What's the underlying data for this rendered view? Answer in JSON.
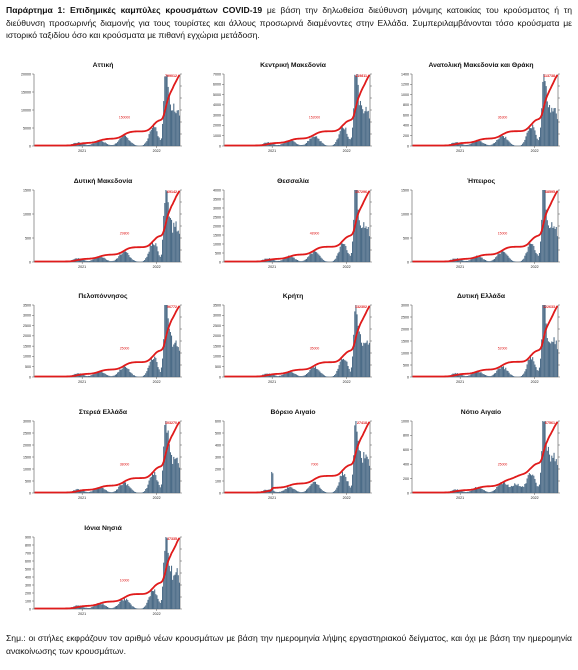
{
  "caption": {
    "label": "Παράρτημα 1:",
    "title": "Επιδημικές καμπύλες κρουσμάτων COVID-19",
    "text": " με βάση την δηλωθείσα διεύθυνση μόνιμης κατοικίας του κρούσματος ή τη διεύθυνση προσωρινής διαμονής για τους τουρίστες και άλλους προσωρινά διαμένοντες στην Ελλάδα. Συμπεριλαμβάνονται τόσο κρούσματα με ιστορικό ταξιδίου όσο και κρούσματα με πιθανή εγχώρια μετάδοση."
  },
  "note": "Σημ.: οι στήλες εκφράζουν τον αριθμό νέων κρουσμάτων με βάση την ημερομηνία λήψης εργαστηριακού δείγματος, και όχι με βάση την ημερομηνία ανακοίνωσης των κρουσμάτων.",
  "colors": {
    "bars": "#4a6a86",
    "line": "#e01b1b",
    "axis": "#333333"
  },
  "chart_data": [
    {
      "type": "bar",
      "title": "Αττική",
      "ylim": [
        0,
        20000
      ],
      "left_ticks": [
        "0",
        "5000",
        "10000",
        "15000",
        "20000"
      ],
      "x_ticks": [
        "2021",
        "2022"
      ],
      "bar_profile": "attiki",
      "cumulative_label": "799012",
      "mid_label": "150000"
    },
    {
      "type": "bar",
      "title": "Κεντρική Μακεδονία",
      "ylim": [
        0,
        7000
      ],
      "left_ticks": [
        "0",
        "1000",
        "2000",
        "3000",
        "4000",
        "5000",
        "6000",
        "7000"
      ],
      "x_ticks": [
        "2021",
        "2022"
      ],
      "bar_profile": "kmak",
      "cumulative_label": "419811",
      "mid_label": "152000"
    },
    {
      "type": "bar",
      "title": "Ανατολική Μακεδονία και Θράκη",
      "ylim": [
        0,
        1400
      ],
      "left_ticks": [
        "0",
        "200",
        "400",
        "600",
        "800",
        "1000",
        "1200",
        "1400"
      ],
      "x_ticks": [
        "2021",
        "2022"
      ],
      "bar_profile": "amth",
      "cumulative_label": "113738",
      "mid_label": "36300"
    },
    {
      "type": "bar",
      "title": "Δυτική Μακεδονία",
      "ylim": [
        0,
        1600
      ],
      "left_ticks": [
        "0",
        "500",
        "1000",
        "1500"
      ],
      "x_ticks": [
        "2021",
        "2022"
      ],
      "bar_profile": "dmak",
      "cumulative_label": "69142",
      "mid_label": "29800"
    },
    {
      "type": "bar",
      "title": "Θεσσαλία",
      "ylim": [
        0,
        4000
      ],
      "left_ticks": [
        "0",
        "500",
        "1000",
        "1500",
        "2000",
        "2500",
        "3000",
        "3500",
        "4000"
      ],
      "x_ticks": [
        "2021",
        "2022"
      ],
      "bar_profile": "thes",
      "cumulative_label": "157296",
      "mid_label": "48900"
    },
    {
      "type": "bar",
      "title": "Ήπειρος",
      "ylim": [
        0,
        1600
      ],
      "left_ticks": [
        "0",
        "500",
        "1000",
        "1500"
      ],
      "x_ticks": [
        "2021",
        "2022"
      ],
      "bar_profile": "ipir",
      "cumulative_label": "68595",
      "mid_label": "15000"
    },
    {
      "type": "bar",
      "title": "Πελοπόννησος",
      "ylim": [
        0,
        3500
      ],
      "left_ticks": [
        "0",
        "500",
        "1000",
        "1500",
        "2000",
        "2500",
        "3000",
        "3500"
      ],
      "x_ticks": [
        "2021",
        "2022"
      ],
      "bar_profile": "pelo",
      "cumulative_label": "96772",
      "mid_label": "25000"
    },
    {
      "type": "bar",
      "title": "Κρήτη",
      "ylim": [
        0,
        3500
      ],
      "left_ticks": [
        "0",
        "500",
        "1000",
        "1500",
        "2000",
        "2500",
        "3000",
        "3500"
      ],
      "x_ticks": [
        "2021",
        "2022"
      ],
      "bar_profile": "krit",
      "cumulative_label": "132302",
      "mid_label": "35000"
    },
    {
      "type": "bar",
      "title": "Δυτική Ελλάδα",
      "ylim": [
        0,
        3000
      ],
      "left_ticks": [
        "0",
        "500",
        "1000",
        "1500",
        "2000",
        "2500",
        "3000"
      ],
      "x_ticks": [
        "2021",
        "2022"
      ],
      "bar_profile": "dell",
      "cumulative_label": "122633",
      "mid_label": "52000"
    },
    {
      "type": "bar",
      "title": "Στερεά Ελλάδα",
      "ylim": [
        0,
        3000
      ],
      "left_ticks": [
        "0",
        "500",
        "1000",
        "1500",
        "2000",
        "2500",
        "3000"
      ],
      "x_ticks": [
        "2021",
        "2022"
      ],
      "bar_profile": "stel",
      "cumulative_label": "103270",
      "mid_label": "38000"
    },
    {
      "type": "bar",
      "title": "Βόρειο Αιγαίο",
      "ylim": [
        0,
        600
      ],
      "left_ticks": [
        "0",
        "100",
        "200",
        "300",
        "400",
        "500",
        "600"
      ],
      "x_ticks": [
        "2021",
        "2022"
      ],
      "bar_profile": "vaig",
      "cumulative_label": "27418",
      "mid_label": "7000"
    },
    {
      "type": "bar",
      "title": "Νότιο Αιγαίο",
      "ylim": [
        0,
        1000
      ],
      "left_ticks": [
        "0",
        "200",
        "400",
        "600",
        "800",
        "1000"
      ],
      "x_ticks": [
        "2021",
        "2022"
      ],
      "bar_profile": "naig",
      "cumulative_label": "67561",
      "mid_label": "25000"
    },
    {
      "type": "bar",
      "title": "Ιόνια Νησιά",
      "ylim": [
        0,
        900
      ],
      "left_ticks": [
        "0",
        "100",
        "200",
        "300",
        "400",
        "500",
        "600",
        "700",
        "800",
        "900"
      ],
      "x_ticks": [
        "2021",
        "2022"
      ],
      "bar_profile": "ioni",
      "cumulative_label": "37335",
      "mid_label": "10000"
    }
  ]
}
